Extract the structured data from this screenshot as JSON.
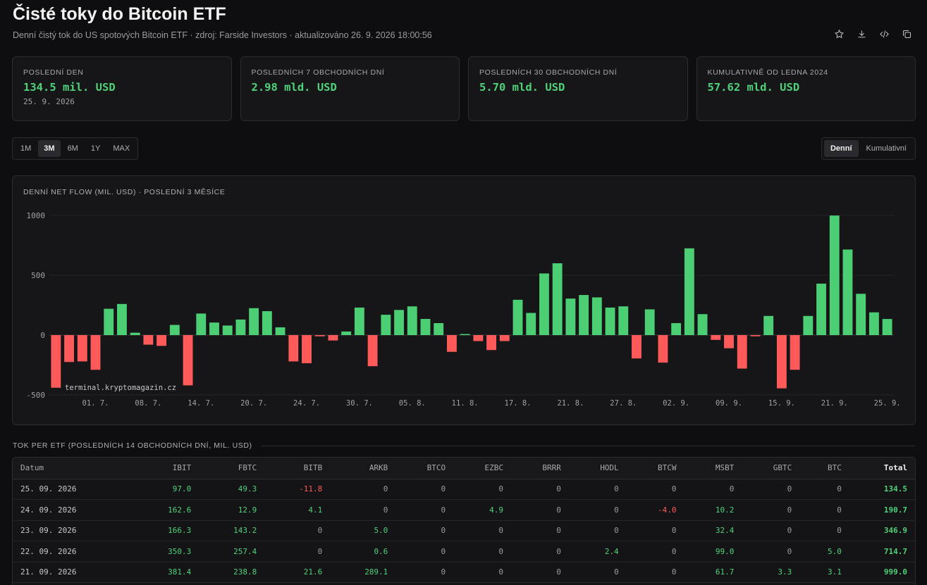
{
  "header": {
    "title": "Čisté toky do Bitcoin ETF",
    "subtitle": "Denní čistý tok do US spotových Bitcoin ETF · zdroj: Farside Investors · aktualizováno 26. 9. 2026 18:00:56"
  },
  "toolbar": {
    "icons": [
      "star-icon",
      "download-icon",
      "code-icon",
      "copy-icon"
    ]
  },
  "kpis": [
    {
      "label": "POSLEDNÍ DEN",
      "value": "134.5 mil. USD",
      "sub": "25. 9. 2026"
    },
    {
      "label": "POSLEDNÍCH 7 OBCHODNÍCH DNÍ",
      "value": "2.98 mld. USD",
      "sub": ""
    },
    {
      "label": "POSLEDNÍCH 30 OBCHODNÍCH DNÍ",
      "value": "5.70 mld. USD",
      "sub": ""
    },
    {
      "label": "KUMULATIVNĚ OD LEDNA 2024",
      "value": "57.62 mld. USD",
      "sub": ""
    }
  ],
  "ranges": {
    "items": [
      "1M",
      "3M",
      "6M",
      "1Y",
      "MAX"
    ],
    "active": "3M"
  },
  "modes": {
    "items": [
      "Denní",
      "Kumulativní"
    ],
    "active": "Denní"
  },
  "chart": {
    "title": "DENNÍ NET FLOW (MIL. USD) · POSLEDNÍ 3 MĚSÍCE",
    "watermark": "terminal.kryptomagazin.cz"
  },
  "chart_data": {
    "type": "bar",
    "ylim": [
      -500,
      1000
    ],
    "yticks": [
      1000,
      500,
      0,
      -500
    ],
    "xtick_labels": [
      "01. 7.",
      "08. 7.",
      "14. 7.",
      "20. 7.",
      "24. 7.",
      "30. 7.",
      "05. 8.",
      "11. 8.",
      "17. 8.",
      "21. 8.",
      "27. 8.",
      "02. 9.",
      "09. 9.",
      "15. 9.",
      "21. 9.",
      "25. 9."
    ],
    "xtick_index": [
      3,
      7,
      11,
      15,
      19,
      23,
      27,
      31,
      35,
      39,
      43,
      47,
      51,
      55,
      59,
      63
    ],
    "values": [
      -440,
      -225,
      -220,
      -290,
      220,
      260,
      20,
      -80,
      -90,
      85,
      -420,
      180,
      105,
      80,
      130,
      225,
      200,
      65,
      -220,
      -235,
      -10,
      -45,
      30,
      230,
      -260,
      170,
      210,
      240,
      135,
      100,
      -140,
      5,
      -50,
      -125,
      -50,
      295,
      185,
      515,
      600,
      305,
      335,
      315,
      230,
      240,
      -195,
      215,
      -230,
      100,
      725,
      175,
      -40,
      -110,
      -280,
      -10,
      160,
      -445,
      -290,
      160,
      430,
      999,
      715,
      345,
      190,
      134.5
    ],
    "grid": true,
    "colors": {
      "positive": "#4ccf74",
      "negative": "#ff5a5a"
    }
  },
  "table": {
    "section_title": "TOK PER ETF (POSLEDNÍCH 14 OBCHODNÍCH DNÍ, MIL. USD)",
    "columns": [
      "Datum",
      "IBIT",
      "FBTC",
      "BITB",
      "ARKB",
      "BTCO",
      "EZBC",
      "BRRR",
      "HODL",
      "BTCW",
      "MSBT",
      "GBTC",
      "BTC",
      "Total"
    ],
    "rows": [
      [
        "25. 09. 2026",
        "97.0",
        "49.3",
        "-11.8",
        "0",
        "0",
        "0",
        "0",
        "0",
        "0",
        "0",
        "0",
        "0",
        "134.5"
      ],
      [
        "24. 09. 2026",
        "162.6",
        "12.9",
        "4.1",
        "0",
        "0",
        "4.9",
        "0",
        "0",
        "-4.0",
        "10.2",
        "0",
        "0",
        "190.7"
      ],
      [
        "23. 09. 2026",
        "166.3",
        "143.2",
        "0",
        "5.0",
        "0",
        "0",
        "0",
        "0",
        "0",
        "32.4",
        "0",
        "0",
        "346.9"
      ],
      [
        "22. 09. 2026",
        "350.3",
        "257.4",
        "0",
        "0.6",
        "0",
        "0",
        "0",
        "2.4",
        "0",
        "99.0",
        "0",
        "5.0",
        "714.7"
      ],
      [
        "21. 09. 2026",
        "381.4",
        "238.8",
        "21.6",
        "289.1",
        "0",
        "0",
        "0",
        "0",
        "0",
        "61.7",
        "3.3",
        "3.1",
        "999.0"
      ]
    ]
  }
}
